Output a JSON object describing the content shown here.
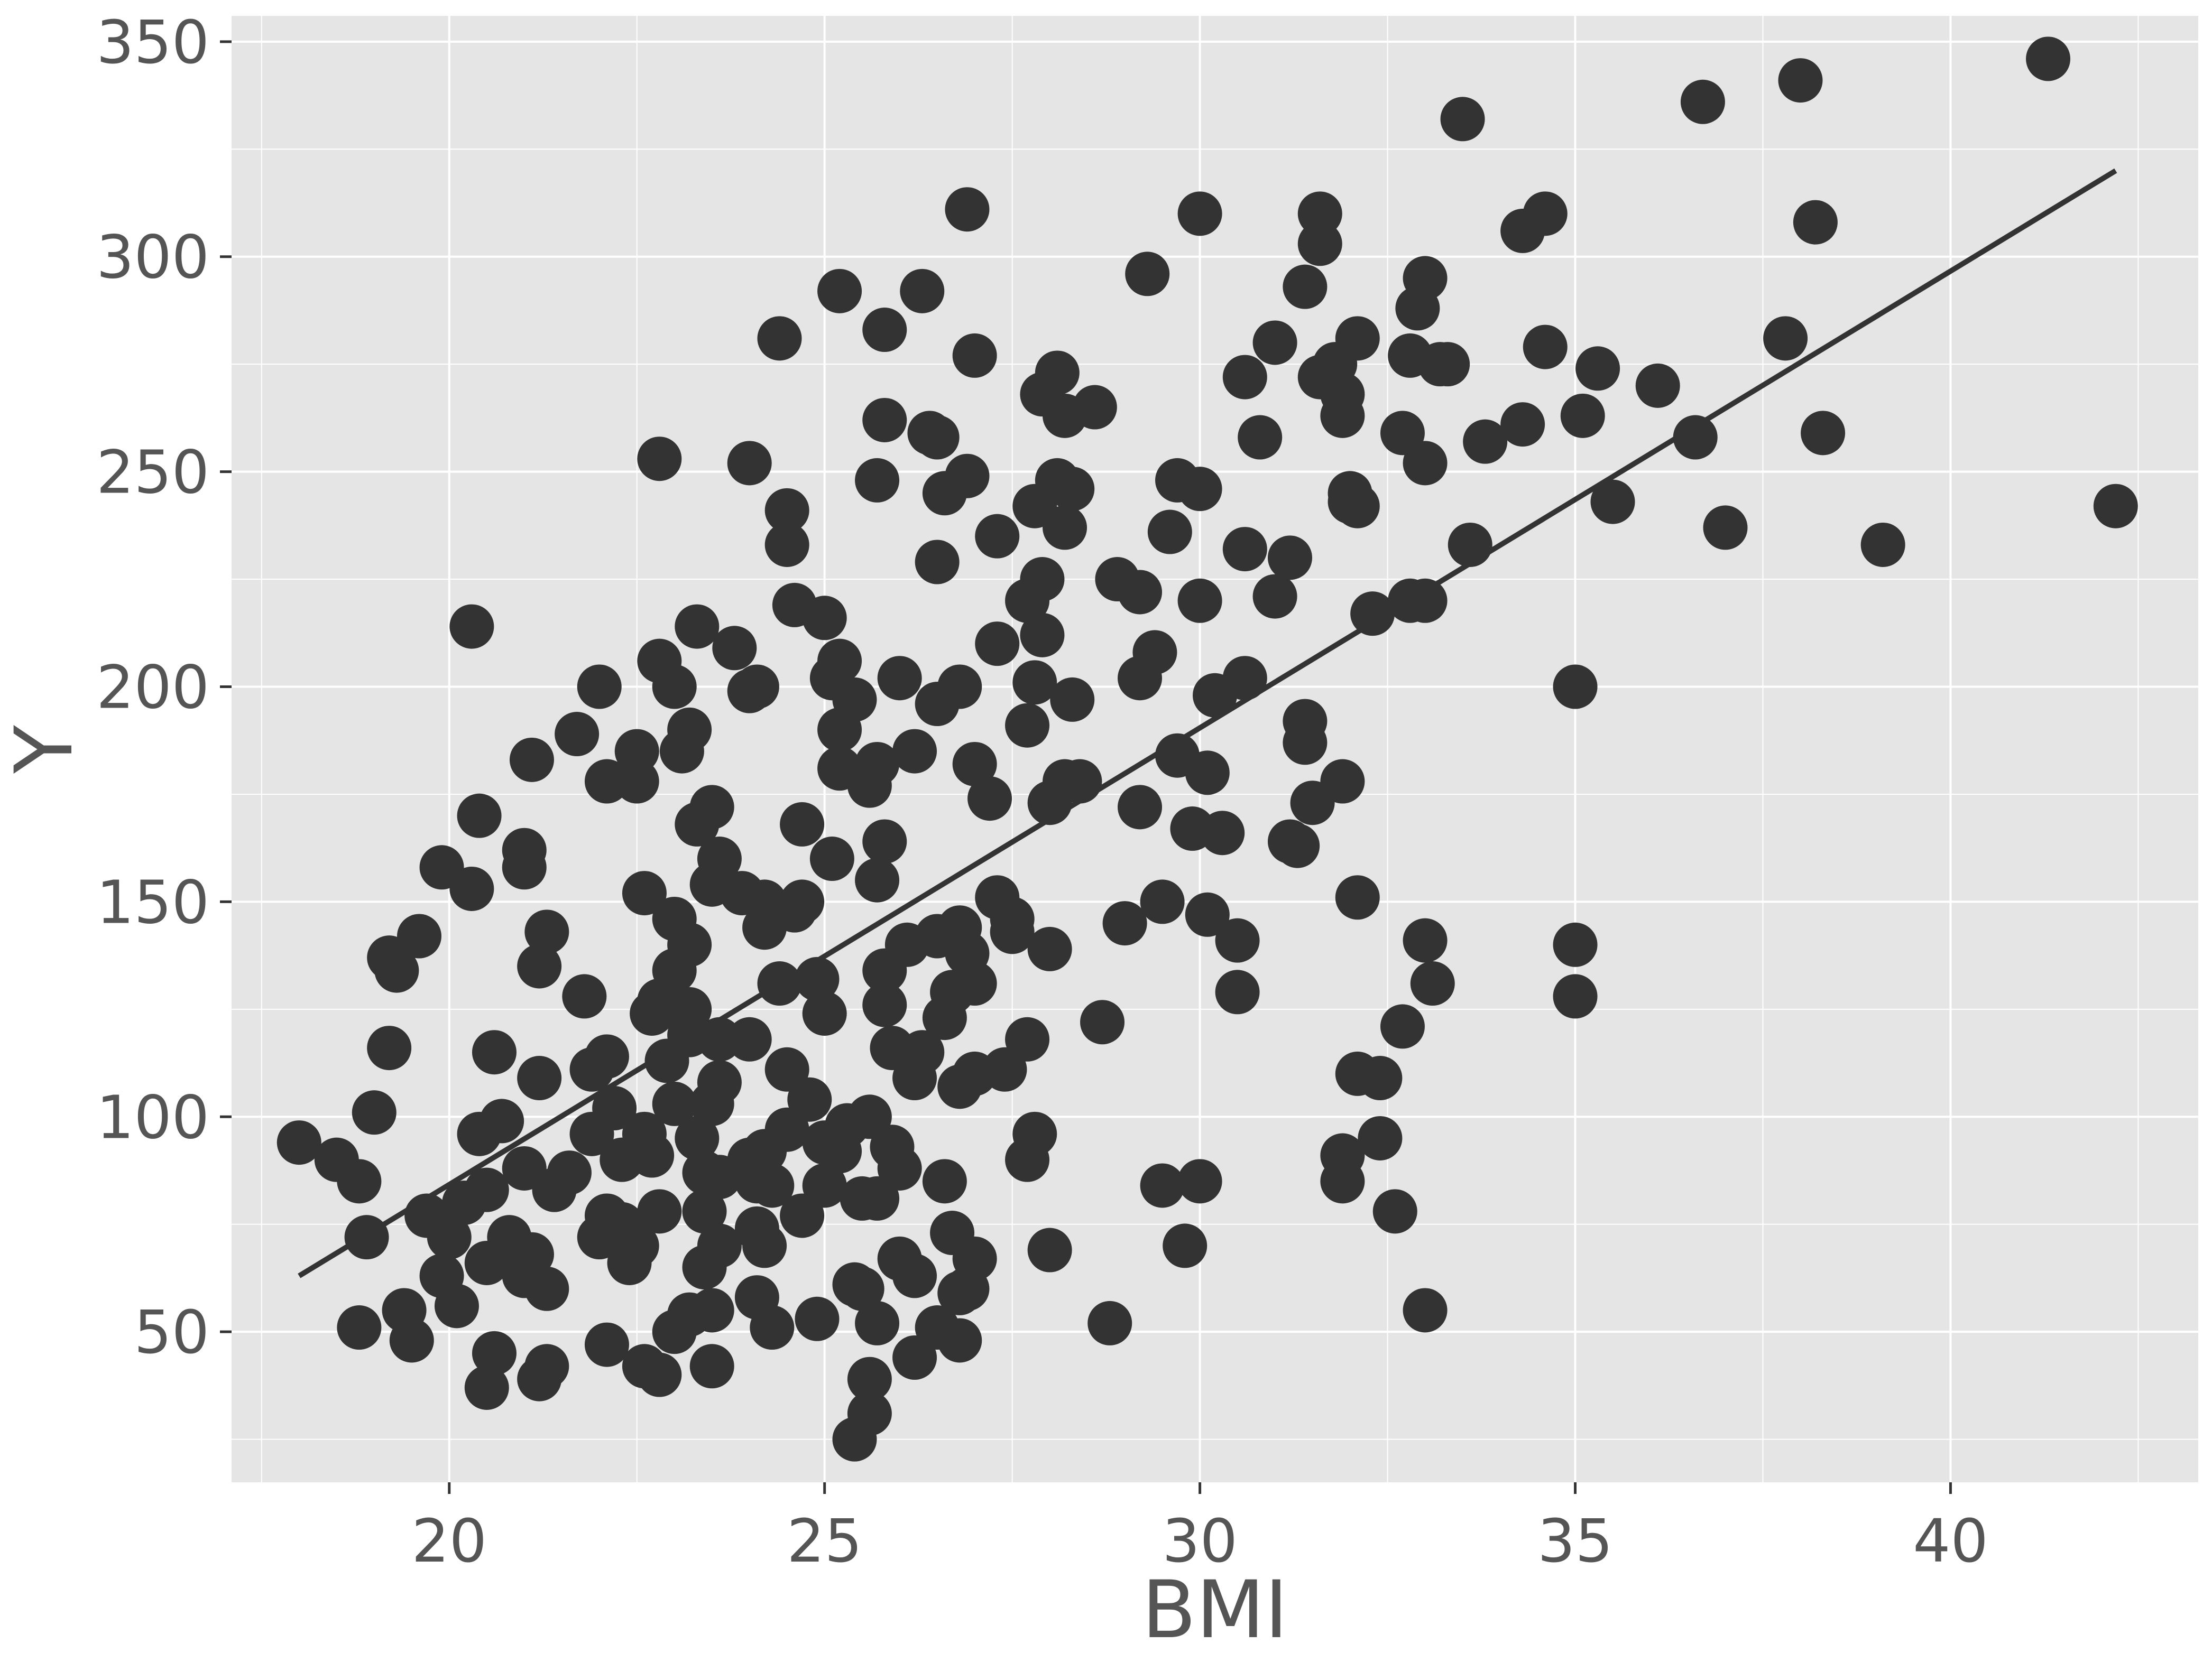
{
  "chart_data": {
    "type": "scatter",
    "title": "",
    "xlabel": "BMI",
    "ylabel": "Y",
    "xlim": [
      17.1,
      43.3
    ],
    "ylim": [
      15,
      356
    ],
    "xticks": [
      20,
      25,
      30,
      35,
      40
    ],
    "yticks": [
      50,
      100,
      150,
      200,
      250,
      300,
      350
    ],
    "grid": true,
    "legend": "none",
    "colors": {
      "panel": "#e5e5e5",
      "grid": "#ffffff",
      "points": "#333333",
      "line": "#333333",
      "text": "#555555"
    },
    "fit_line": {
      "x": [
        18.0,
        42.2
      ],
      "y": [
        63,
        320
      ]
    },
    "points": [
      [
        18.0,
        94
      ],
      [
        18.5,
        90
      ],
      [
        18.8,
        85
      ],
      [
        18.8,
        51
      ],
      [
        18.9,
        72
      ],
      [
        19.0,
        101
      ],
      [
        19.2,
        116
      ],
      [
        19.2,
        137
      ],
      [
        19.3,
        134
      ],
      [
        19.4,
        55
      ],
      [
        19.5,
        48
      ],
      [
        19.6,
        142
      ],
      [
        19.7,
        77
      ],
      [
        19.9,
        158
      ],
      [
        19.9,
        63
      ],
      [
        20.0,
        72
      ],
      [
        20.1,
        56
      ],
      [
        20.2,
        80
      ],
      [
        20.3,
        153
      ],
      [
        20.3,
        214
      ],
      [
        20.4,
        170
      ],
      [
        20.4,
        96
      ],
      [
        20.5,
        83
      ],
      [
        20.5,
        66
      ],
      [
        20.5,
        37
      ],
      [
        20.6,
        115
      ],
      [
        20.6,
        45
      ],
      [
        20.7,
        99
      ],
      [
        20.8,
        72
      ],
      [
        20.9,
        67
      ],
      [
        21.0,
        162
      ],
      [
        21.0,
        158
      ],
      [
        21.0,
        88
      ],
      [
        21.0,
        63
      ],
      [
        21.1,
        183
      ],
      [
        21.1,
        68
      ],
      [
        21.2,
        135
      ],
      [
        21.2,
        109
      ],
      [
        21.2,
        39
      ],
      [
        21.3,
        143
      ],
      [
        21.3,
        60
      ],
      [
        21.3,
        42
      ],
      [
        21.4,
        83
      ],
      [
        21.6,
        87
      ],
      [
        21.7,
        189
      ],
      [
        21.8,
        128
      ],
      [
        21.9,
        111
      ],
      [
        21.9,
        96
      ],
      [
        22.0,
        200
      ],
      [
        22.0,
        72
      ],
      [
        22.1,
        178
      ],
      [
        22.1,
        114
      ],
      [
        22.1,
        77
      ],
      [
        22.1,
        47
      ],
      [
        22.2,
        102
      ],
      [
        22.3,
        90
      ],
      [
        22.3,
        75
      ],
      [
        22.4,
        66
      ],
      [
        22.5,
        185
      ],
      [
        22.5,
        178
      ],
      [
        22.5,
        70
      ],
      [
        22.6,
        152
      ],
      [
        22.6,
        96
      ],
      [
        22.6,
        42
      ],
      [
        22.7,
        124
      ],
      [
        22.7,
        91
      ],
      [
        22.8,
        206
      ],
      [
        22.8,
        253
      ],
      [
        22.8,
        127
      ],
      [
        22.8,
        78
      ],
      [
        22.8,
        40
      ],
      [
        22.9,
        113
      ],
      [
        23.0,
        200
      ],
      [
        23.0,
        146
      ],
      [
        23.0,
        134
      ],
      [
        23.0,
        103
      ],
      [
        23.0,
        50
      ],
      [
        23.1,
        185
      ],
      [
        23.2,
        190
      ],
      [
        23.2,
        125
      ],
      [
        23.2,
        140
      ],
      [
        23.2,
        119
      ],
      [
        23.2,
        54
      ],
      [
        23.3,
        168
      ],
      [
        23.3,
        214
      ],
      [
        23.3,
        95
      ],
      [
        23.4,
        87
      ],
      [
        23.4,
        78
      ],
      [
        23.4,
        65
      ],
      [
        23.5,
        172
      ],
      [
        23.5,
        154
      ],
      [
        23.5,
        103
      ],
      [
        23.5,
        55
      ],
      [
        23.5,
        42
      ],
      [
        23.6,
        160
      ],
      [
        23.6,
        118
      ],
      [
        23.6,
        108
      ],
      [
        23.6,
        86
      ],
      [
        23.6,
        70
      ],
      [
        23.8,
        209
      ],
      [
        23.9,
        152
      ],
      [
        24.0,
        252
      ],
      [
        24.0,
        199
      ],
      [
        24.0,
        118
      ],
      [
        24.0,
        90
      ],
      [
        24.1,
        200
      ],
      [
        24.1,
        85
      ],
      [
        24.1,
        74
      ],
      [
        24.1,
        58
      ],
      [
        24.2,
        150
      ],
      [
        24.2,
        144
      ],
      [
        24.2,
        92
      ],
      [
        24.2,
        70
      ],
      [
        24.3,
        84
      ],
      [
        24.3,
        51
      ],
      [
        24.4,
        281
      ],
      [
        24.4,
        131
      ],
      [
        24.5,
        241
      ],
      [
        24.5,
        233
      ],
      [
        24.5,
        111
      ],
      [
        24.5,
        97
      ],
      [
        24.6,
        219
      ],
      [
        24.6,
        148
      ],
      [
        24.7,
        168
      ],
      [
        24.7,
        150
      ],
      [
        24.7,
        77
      ],
      [
        24.8,
        104
      ],
      [
        24.9,
        132
      ],
      [
        24.9,
        53
      ],
      [
        25.0,
        216
      ],
      [
        25.0,
        124
      ],
      [
        25.0,
        94
      ],
      [
        25.0,
        84
      ],
      [
        25.1,
        202
      ],
      [
        25.1,
        160
      ],
      [
        25.2,
        292
      ],
      [
        25.2,
        206
      ],
      [
        25.2,
        190
      ],
      [
        25.2,
        181
      ],
      [
        25.2,
        92
      ],
      [
        25.3,
        98
      ],
      [
        25.4,
        197
      ],
      [
        25.4,
        61
      ],
      [
        25.4,
        25
      ],
      [
        25.5,
        81
      ],
      [
        25.5,
        60
      ],
      [
        25.6,
        177
      ],
      [
        25.6,
        100
      ],
      [
        25.6,
        39
      ],
      [
        25.6,
        31
      ],
      [
        25.7,
        248
      ],
      [
        25.7,
        182
      ],
      [
        25.7,
        155
      ],
      [
        25.7,
        81
      ],
      [
        25.7,
        52
      ],
      [
        25.8,
        283
      ],
      [
        25.8,
        262
      ],
      [
        25.8,
        164
      ],
      [
        25.8,
        134
      ],
      [
        25.8,
        126
      ],
      [
        25.9,
        116
      ],
      [
        25.9,
        93
      ],
      [
        26.0,
        202
      ],
      [
        26.0,
        88
      ],
      [
        26.0,
        67
      ],
      [
        26.1,
        140
      ],
      [
        26.2,
        185
      ],
      [
        26.2,
        113
      ],
      [
        26.2,
        109
      ],
      [
        26.2,
        63
      ],
      [
        26.2,
        44
      ],
      [
        26.3,
        292
      ],
      [
        26.3,
        115
      ],
      [
        26.4,
        259
      ],
      [
        26.5,
        258
      ],
      [
        26.5,
        229
      ],
      [
        26.5,
        196
      ],
      [
        26.5,
        142
      ],
      [
        26.5,
        51
      ],
      [
        26.6,
        245
      ],
      [
        26.6,
        123
      ],
      [
        26.6,
        85
      ],
      [
        26.7,
        129
      ],
      [
        26.7,
        73
      ],
      [
        26.8,
        200
      ],
      [
        26.8,
        144
      ],
      [
        26.8,
        107
      ],
      [
        26.8,
        59
      ],
      [
        26.8,
        48
      ],
      [
        26.9,
        311
      ],
      [
        26.9,
        249
      ],
      [
        26.9,
        138
      ],
      [
        26.9,
        60
      ],
      [
        27.0,
        277
      ],
      [
        27.0,
        182
      ],
      [
        27.0,
        131
      ],
      [
        27.0,
        110
      ],
      [
        27.0,
        67
      ],
      [
        27.2,
        174
      ],
      [
        27.3,
        235
      ],
      [
        27.3,
        210
      ],
      [
        27.3,
        151
      ],
      [
        27.4,
        111
      ],
      [
        27.5,
        146
      ],
      [
        27.5,
        143
      ],
      [
        27.7,
        220
      ],
      [
        27.7,
        191
      ],
      [
        27.7,
        118
      ],
      [
        27.7,
        90
      ],
      [
        27.8,
        242
      ],
      [
        27.8,
        201
      ],
      [
        27.8,
        96
      ],
      [
        27.9,
        268
      ],
      [
        27.9,
        225
      ],
      [
        27.9,
        212
      ],
      [
        28.0,
        173
      ],
      [
        28.0,
        139
      ],
      [
        28.0,
        69
      ],
      [
        28.1,
        273
      ],
      [
        28.1,
        248
      ],
      [
        28.2,
        263
      ],
      [
        28.2,
        237
      ],
      [
        28.2,
        178
      ],
      [
        28.3,
        246
      ],
      [
        28.3,
        197
      ],
      [
        28.4,
        178
      ],
      [
        28.6,
        265
      ],
      [
        28.7,
        122
      ],
      [
        28.8,
        52
      ],
      [
        28.9,
        225
      ],
      [
        29.0,
        145
      ],
      [
        29.2,
        222
      ],
      [
        29.2,
        202
      ],
      [
        29.2,
        172
      ],
      [
        29.3,
        296
      ],
      [
        29.4,
        208
      ],
      [
        29.5,
        150
      ],
      [
        29.5,
        84
      ],
      [
        29.6,
        236
      ],
      [
        29.7,
        248
      ],
      [
        29.7,
        184
      ],
      [
        29.8,
        70
      ],
      [
        29.9,
        167
      ],
      [
        30.0,
        310
      ],
      [
        30.0,
        246
      ],
      [
        30.0,
        220
      ],
      [
        30.0,
        85
      ],
      [
        30.1,
        180
      ],
      [
        30.1,
        147
      ],
      [
        30.2,
        198
      ],
      [
        30.3,
        166
      ],
      [
        30.5,
        141
      ],
      [
        30.5,
        129
      ],
      [
        30.6,
        272
      ],
      [
        30.6,
        232
      ],
      [
        30.6,
        202
      ],
      [
        30.8,
        258
      ],
      [
        31.0,
        280
      ],
      [
        31.0,
        221
      ],
      [
        31.2,
        230
      ],
      [
        31.2,
        164
      ],
      [
        31.3,
        163
      ],
      [
        31.4,
        293
      ],
      [
        31.4,
        192
      ],
      [
        31.4,
        187
      ],
      [
        31.5,
        173
      ],
      [
        31.6,
        310
      ],
      [
        31.6,
        303
      ],
      [
        31.6,
        272
      ],
      [
        31.8,
        275
      ],
      [
        31.9,
        268
      ],
      [
        31.9,
        263
      ],
      [
        31.9,
        178
      ],
      [
        31.9,
        91
      ],
      [
        31.9,
        85
      ],
      [
        32.0,
        245
      ],
      [
        32.0,
        243
      ],
      [
        32.1,
        281
      ],
      [
        32.1,
        242
      ],
      [
        32.1,
        151
      ],
      [
        32.1,
        110
      ],
      [
        32.3,
        217
      ],
      [
        32.4,
        109
      ],
      [
        32.4,
        95
      ],
      [
        32.6,
        78
      ],
      [
        32.7,
        259
      ],
      [
        32.7,
        121
      ],
      [
        32.8,
        277
      ],
      [
        32.8,
        220
      ],
      [
        32.9,
        288
      ],
      [
        33.0,
        295
      ],
      [
        33.0,
        252
      ],
      [
        33.0,
        220
      ],
      [
        33.0,
        141
      ],
      [
        33.0,
        55
      ],
      [
        33.1,
        131
      ],
      [
        33.2,
        275
      ],
      [
        33.3,
        275
      ],
      [
        33.5,
        332
      ],
      [
        33.6,
        233
      ],
      [
        33.8,
        257
      ],
      [
        34.3,
        306
      ],
      [
        34.3,
        261
      ],
      [
        34.6,
        310
      ],
      [
        34.6,
        279
      ],
      [
        35.0,
        200
      ],
      [
        35.0,
        140
      ],
      [
        35.0,
        128
      ],
      [
        35.1,
        263
      ],
      [
        35.3,
        274
      ],
      [
        35.5,
        243
      ],
      [
        36.1,
        270
      ],
      [
        36.6,
        258
      ],
      [
        36.7,
        336
      ],
      [
        37.0,
        237
      ],
      [
        37.8,
        281
      ],
      [
        38.0,
        341
      ],
      [
        38.2,
        308
      ],
      [
        38.3,
        259
      ],
      [
        39.1,
        233
      ],
      [
        41.3,
        346
      ],
      [
        42.2,
        242
      ]
    ]
  }
}
